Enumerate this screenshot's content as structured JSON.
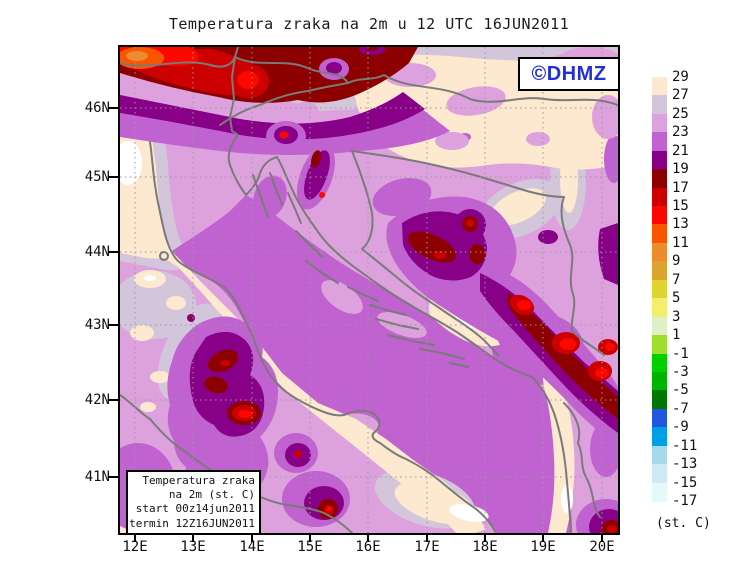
{
  "title": "Temperatura zraka na 2m u 12 UTC 16JUN2011",
  "watermark": {
    "text": "©DHMZ",
    "color": "#2230d8"
  },
  "info_box": {
    "lines": [
      "Temperatura zraka",
      "na 2m (st. C)",
      "start 00z14jun2011",
      "termin 12Z16JUN2011"
    ]
  },
  "axes": {
    "lat_labels": [
      "46N",
      "45N",
      "44N",
      "43N",
      "42N",
      "41N"
    ],
    "lon_labels": [
      "12E",
      "13E",
      "14E",
      "15E",
      "16E",
      "17E",
      "18E",
      "19E",
      "20E"
    ]
  },
  "legend": {
    "unit": "(st. C)",
    "tick_labels": [
      "29",
      "27",
      "25",
      "23",
      "21",
      "19",
      "17",
      "15",
      "13",
      "11",
      "9",
      "7",
      "5",
      "3",
      "1",
      "-1",
      "-3",
      "-5",
      "-7",
      "-9",
      "-11",
      "-13",
      "-15",
      "-17"
    ],
    "box_colors": [
      "#fde8d0",
      "#d4c6da",
      "#dda2dd",
      "#c162d1",
      "#870087",
      "#8c0000",
      "#cd0000",
      "#fb0800",
      "#fa5500",
      "#ec8c2e",
      "#dca32e",
      "#e0d334",
      "#f2ee6e",
      "#dff0c8",
      "#9fdd2f",
      "#00d000",
      "#00b400",
      "#007800",
      "#2357e0",
      "#00a0e6",
      "#a6d9ec",
      "#cfeaf4",
      "#e6f9fa"
    ]
  },
  "map_colors": {
    "c_gt29": "#ffffff",
    "c27_29": "#fde8d0",
    "c25_27": "#d4c6da",
    "c23_25": "#dda2dd",
    "c21_23": "#c162d1",
    "c19_21": "#870087",
    "c17_19": "#8c0000",
    "c15_17": "#cd0000",
    "c13_15": "#fb0800",
    "c11_13": "#fa5500",
    "c9_11": "#ec8c2e",
    "coastline": "#7a7a7a",
    "grid": "#9a9a9a",
    "frame": "#000000"
  }
}
